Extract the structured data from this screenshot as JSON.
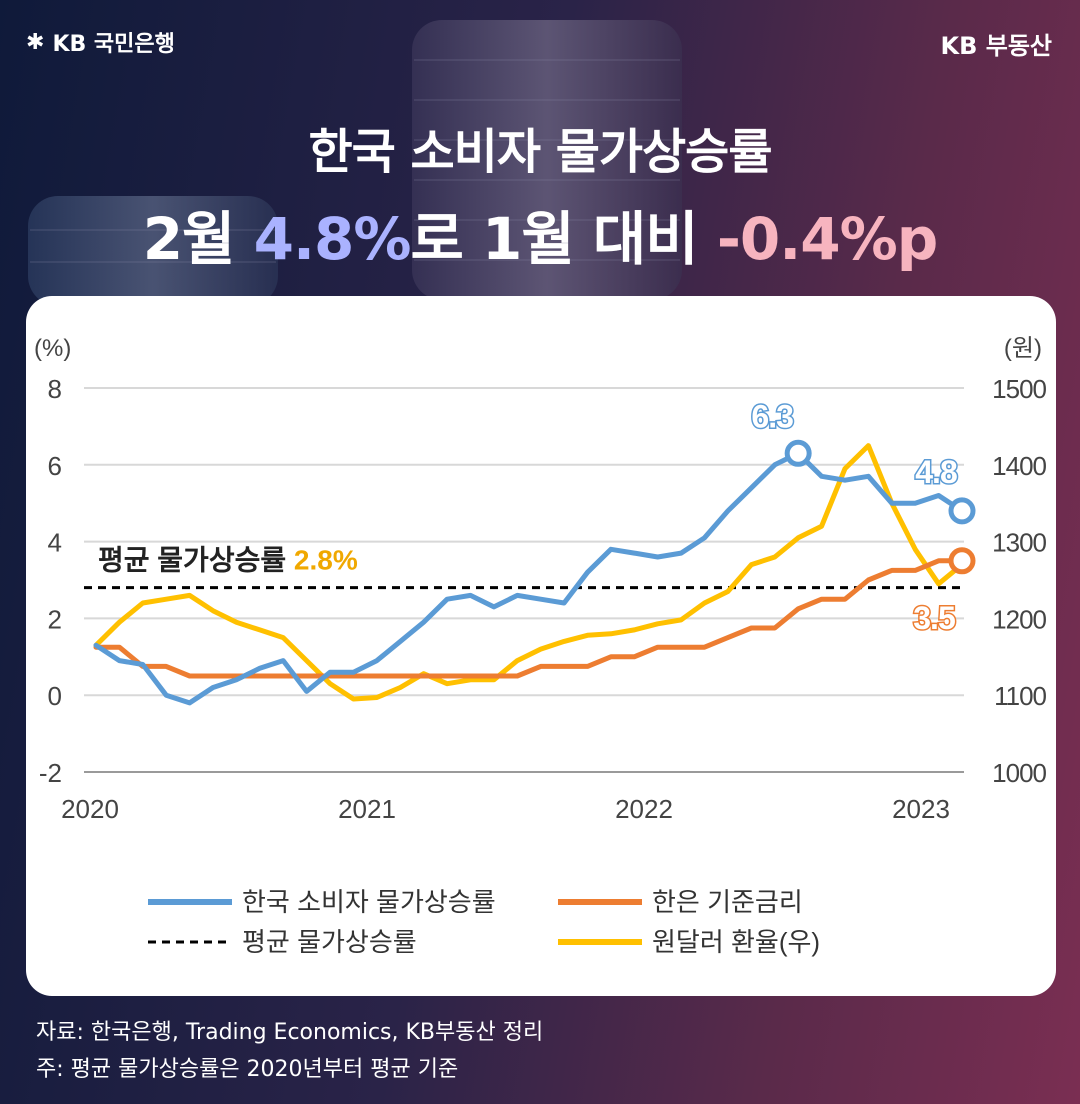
{
  "brand": {
    "bank": "KB 국민은행",
    "product": "KB 부동산"
  },
  "headline": {
    "line1": "한국 소비자 물가상승률",
    "line2_a": "2월 ",
    "line2_b": "4.8%",
    "line2_c": "로 1월 대비 ",
    "line2_d": "-0.4%p"
  },
  "footer": {
    "source": "자료: 한국은행, Trading Economics, KB부동산 정리",
    "note": "주: 평균 물가상승률은 2020년부터 평균 기준"
  },
  "chart_data": {
    "type": "line",
    "left_unit": "(%)",
    "right_unit": "(원)",
    "ylim_left": [
      -2,
      8
    ],
    "ylim_right": [
      1000,
      1500
    ],
    "yticks_left": [
      "8",
      "6",
      "4",
      "2",
      "0",
      "-2"
    ],
    "yticks_right": [
      "1500",
      "1400",
      "1300",
      "1200",
      "1100",
      "1000"
    ],
    "x_tick_labels": [
      "2020",
      "2021",
      "2022",
      "2023"
    ],
    "average": {
      "label": "평균 물가상승률",
      "value": 2.8,
      "value_label": "2.8%"
    },
    "annotations": {
      "cpi_peak": "6.3",
      "cpi_last": "4.8",
      "rate_last": "3.5"
    },
    "colors": {
      "cpi": "#5b9bd5",
      "rate": "#ed7d31",
      "fx": "#ffc000",
      "avg": "#000000"
    },
    "series": [
      {
        "name": "한국 소비자 물가상승률",
        "axis": "left",
        "values": [
          1.3,
          0.9,
          0.8,
          0.0,
          -0.2,
          0.2,
          0.4,
          0.7,
          0.9,
          0.1,
          0.6,
          0.6,
          0.9,
          1.4,
          1.9,
          2.5,
          2.6,
          2.3,
          2.6,
          2.5,
          2.4,
          3.2,
          3.8,
          3.7,
          3.6,
          3.7,
          4.1,
          4.8,
          5.4,
          6.0,
          6.3,
          5.7,
          5.6,
          5.7,
          5.0,
          5.0,
          5.2,
          4.8
        ]
      },
      {
        "name": "한은 기준금리",
        "axis": "left",
        "values": [
          1.25,
          1.25,
          0.75,
          0.75,
          0.5,
          0.5,
          0.5,
          0.5,
          0.5,
          0.5,
          0.5,
          0.5,
          0.5,
          0.5,
          0.5,
          0.5,
          0.5,
          0.5,
          0.5,
          0.75,
          0.75,
          0.75,
          1.0,
          1.0,
          1.25,
          1.25,
          1.25,
          1.5,
          1.75,
          1.75,
          2.25,
          2.5,
          2.5,
          3.0,
          3.25,
          3.25,
          3.5,
          3.5
        ]
      },
      {
        "name": "평균 물가상승률",
        "axis": "left",
        "dashed": true
      },
      {
        "name": "원달러 환율(우)",
        "axis": "right",
        "values": [
          1165,
          1195,
          1220,
          1225,
          1230,
          1210,
          1195,
          1185,
          1175,
          1145,
          1115,
          1095,
          1097,
          1110,
          1128,
          1115,
          1120,
          1120,
          1145,
          1160,
          1170,
          1178,
          1180,
          1185,
          1193,
          1198,
          1220,
          1235,
          1270,
          1280,
          1305,
          1320,
          1395,
          1425,
          1350,
          1290,
          1245,
          1270
        ]
      }
    ]
  }
}
